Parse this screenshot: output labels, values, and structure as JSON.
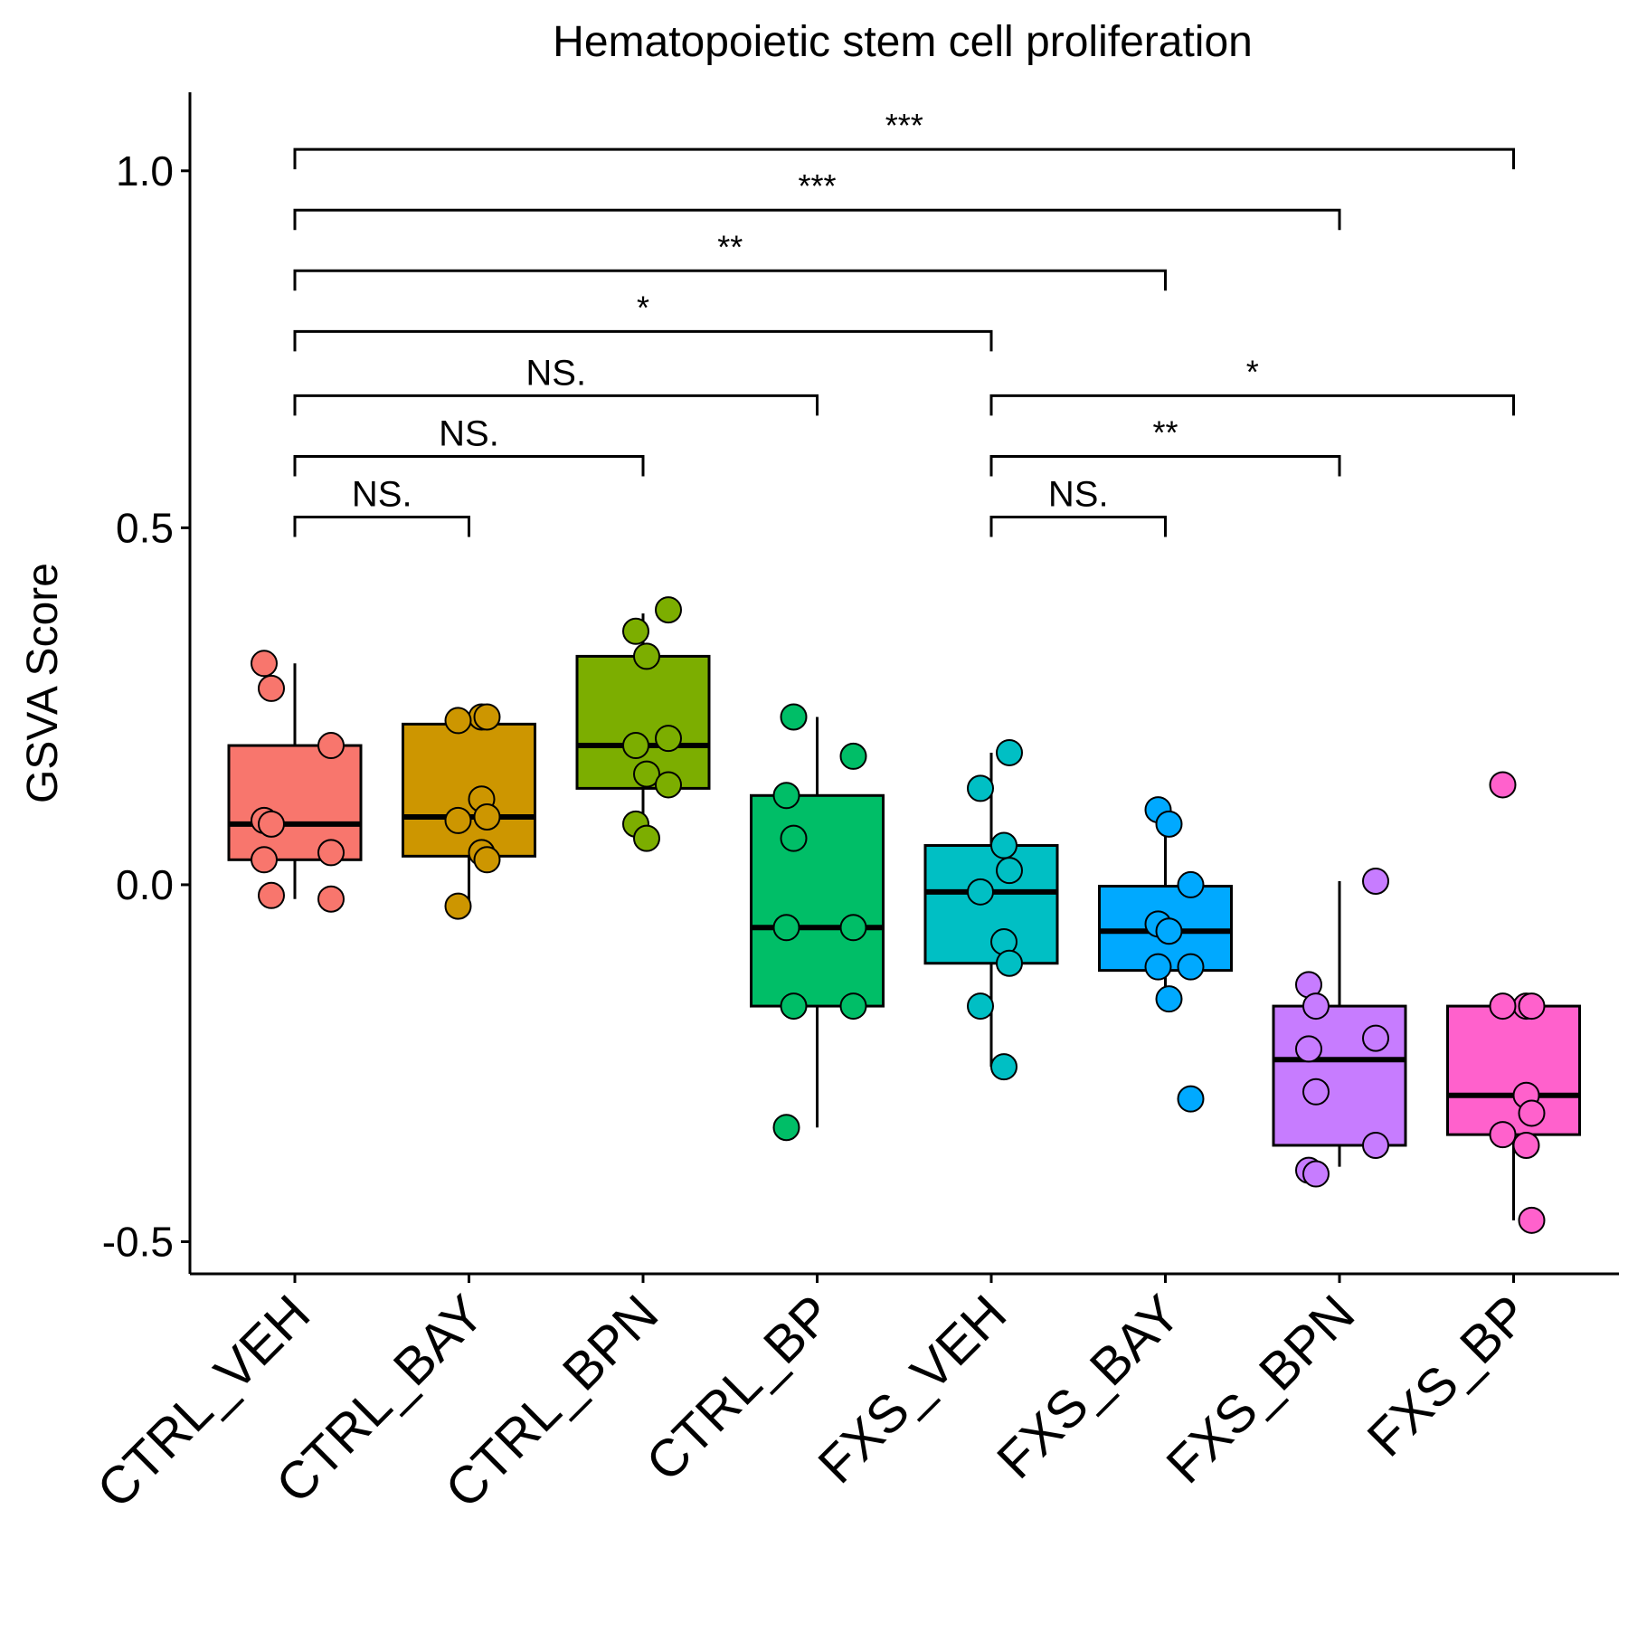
{
  "chart_data": {
    "type": "box",
    "title": "Hematopoietic stem cell proliferation",
    "xlabel": "",
    "ylabel": "GSVA Score",
    "ylim": [
      -0.545,
      1.11
    ],
    "yticks": [
      -0.5,
      0.0,
      0.5,
      1.0
    ],
    "ytick_labels": [
      "-0.5",
      "0.0",
      "0.5",
      "1.0"
    ],
    "grid": false,
    "legend": "none",
    "categories": [
      "CTRL_VEH",
      "CTRL_BAY",
      "CTRL_BPN",
      "CTRL_BP",
      "FXS_VEH",
      "FXS_BAY",
      "FXS_BPN",
      "FXS_BP"
    ],
    "colors": [
      "#F8766D",
      "#CD9600",
      "#7CAE00",
      "#00BE67",
      "#00BFC4",
      "#00A9FF",
      "#C77CFF",
      "#FF61CC"
    ],
    "boxes": [
      {
        "q1": 0.035,
        "median": 0.085,
        "q3": 0.195,
        "whisker_low": -0.02,
        "whisker_high": 0.31
      },
      {
        "q1": 0.04,
        "median": 0.095,
        "q3": 0.225,
        "whisker_low": -0.03,
        "whisker_high": 0.235
      },
      {
        "q1": 0.135,
        "median": 0.195,
        "q3": 0.32,
        "whisker_low": 0.065,
        "whisker_high": 0.38
      },
      {
        "q1": -0.17,
        "median": -0.06,
        "q3": 0.125,
        "whisker_low": -0.34,
        "whisker_high": 0.235
      },
      {
        "q1": -0.11,
        "median": -0.01,
        "q3": 0.055,
        "whisker_low": -0.255,
        "whisker_high": 0.185
      },
      {
        "q1": -0.12,
        "median": -0.065,
        "q3": -0.002,
        "whisker_low": -0.16,
        "whisker_high": 0.105
      },
      {
        "q1": -0.365,
        "median": -0.245,
        "q3": -0.17,
        "whisker_low": -0.395,
        "whisker_high": 0.005
      },
      {
        "q1": -0.35,
        "median": -0.295,
        "q3": -0.17,
        "whisker_low": -0.47,
        "whisker_high": -0.17
      }
    ],
    "points": [
      [
        0.31,
        0.275,
        0.195,
        0.09,
        0.085,
        0.045,
        0.035,
        -0.015,
        -0.02
      ],
      [
        0.235,
        0.235,
        0.23,
        0.12,
        0.095,
        0.09,
        0.045,
        0.035,
        -0.03
      ],
      [
        0.385,
        0.355,
        0.32,
        0.205,
        0.195,
        0.155,
        0.14,
        0.085,
        0.065
      ],
      [
        0.235,
        0.18,
        0.125,
        0.065,
        -0.06,
        -0.06,
        -0.17,
        -0.17,
        -0.34
      ],
      [
        0.185,
        0.135,
        0.055,
        0.02,
        -0.01,
        -0.08,
        -0.11,
        -0.17,
        -0.255
      ],
      [
        0.105,
        0.085,
        0.0,
        -0.055,
        -0.065,
        -0.115,
        -0.115,
        -0.16,
        -0.3
      ],
      [
        0.005,
        -0.14,
        -0.17,
        -0.215,
        -0.23,
        -0.29,
        -0.365,
        -0.4,
        -0.405
      ],
      [
        0.14,
        -0.17,
        -0.17,
        -0.17,
        -0.295,
        -0.32,
        -0.35,
        -0.365,
        -0.47
      ]
    ],
    "comparisons": [
      {
        "from": "CTRL_VEH",
        "to": "CTRL_BAY",
        "y": 0.515,
        "label": "NS."
      },
      {
        "from": "CTRL_VEH",
        "to": "CTRL_BPN",
        "y": 0.6,
        "label": "NS."
      },
      {
        "from": "CTRL_VEH",
        "to": "CTRL_BP",
        "y": 0.685,
        "label": "NS."
      },
      {
        "from": "CTRL_VEH",
        "to": "FXS_VEH",
        "y": 0.775,
        "label": "*"
      },
      {
        "from": "CTRL_VEH",
        "to": "FXS_BAY",
        "y": 0.86,
        "label": "**"
      },
      {
        "from": "CTRL_VEH",
        "to": "FXS_BPN",
        "y": 0.945,
        "label": "***"
      },
      {
        "from": "CTRL_VEH",
        "to": "FXS_BP",
        "y": 1.03,
        "label": "***"
      },
      {
        "from": "FXS_VEH",
        "to": "FXS_BAY",
        "y": 0.515,
        "label": "NS."
      },
      {
        "from": "FXS_VEH",
        "to": "FXS_BPN",
        "y": 0.6,
        "label": "**"
      },
      {
        "from": "FXS_VEH",
        "to": "FXS_BP",
        "y": 0.685,
        "label": "*"
      }
    ]
  }
}
